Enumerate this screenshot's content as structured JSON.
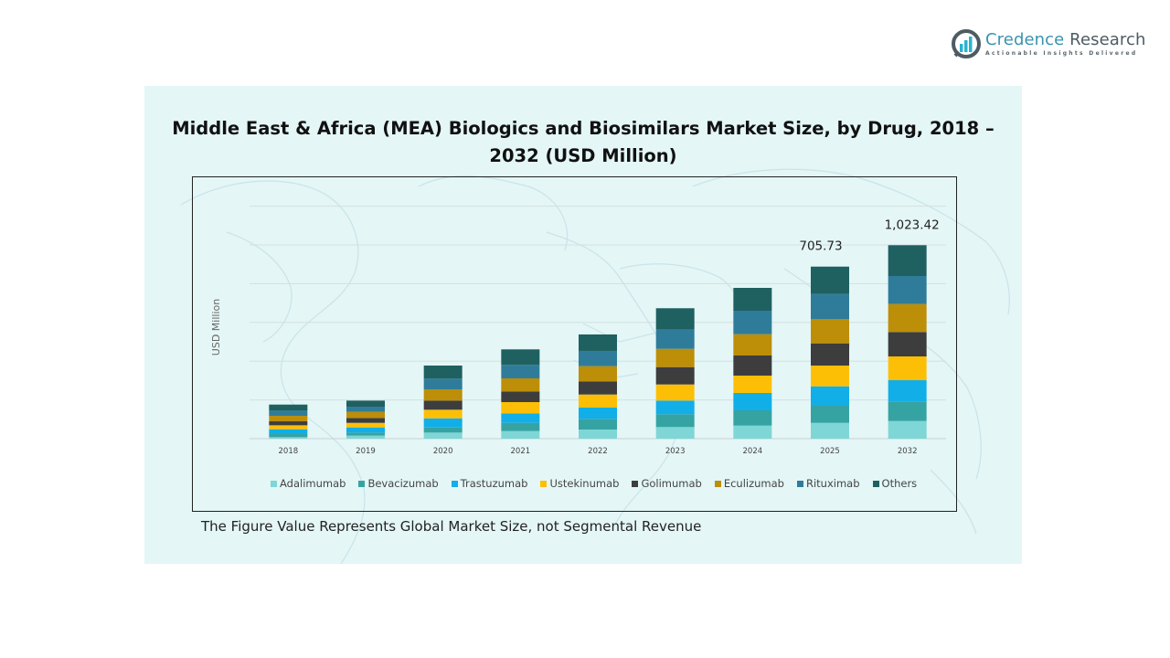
{
  "brand": {
    "name_part1": "Credence",
    "name_part2": " Research",
    "tagline": "Actionable Insights Delivered"
  },
  "footnote": "The Figure Value Represents Global Market Size, not Segmental Revenue",
  "chart_data": {
    "type": "bar",
    "stacked": true,
    "title": "Middle East & Africa (MEA) Biologics and Biosimilars Market Size, by Drug, 2018 – 2032 (USD Million)",
    "xlabel": "",
    "ylabel": "USD Million",
    "grid": true,
    "legend_position": "bottom",
    "categories": [
      "2018",
      "2019",
      "2020",
      "2021",
      "2022",
      "2023",
      "2024",
      "2025",
      "2032"
    ],
    "series": [
      {
        "name": "Adalimumab",
        "color": "#7fd6d6",
        "values": [
          6.2,
          12.5,
          25.0,
          31.1,
          37.5,
          47.6,
          53.6,
          64.8,
          93.3
        ]
      },
      {
        "name": "Bevacizumab",
        "color": "#36a3a3",
        "values": [
          12.5,
          12.5,
          21.0,
          33.7,
          43.9,
          52.5,
          62.6,
          70.1,
          103.4
        ]
      },
      {
        "name": "Trastuzumab",
        "color": "#12aee8",
        "values": [
          20.0,
          21.2,
          37.5,
          39.0,
          46.1,
          56.2,
          71.2,
          79.8,
          112.6
        ]
      },
      {
        "name": "Ustekinumab",
        "color": "#fdbf06",
        "values": [
          16.2,
          18.7,
          35.2,
          46.1,
          53.6,
          66.0,
          71.2,
          85.1,
          125.7
        ]
      },
      {
        "name": "Golimumab",
        "color": "#3d3d3d",
        "values": [
          16.2,
          20.0,
          37.5,
          43.9,
          54.0,
          71.2,
          82.5,
          91.1,
          129.1
        ]
      },
      {
        "name": "Eculizumab",
        "color": "#bd8e08",
        "values": [
          22.5,
          25.0,
          46.1,
          53.6,
          62.2,
          75.0,
          87.3,
          98.9,
          147.9
        ]
      },
      {
        "name": "Rituximab",
        "color": "#2f7c9a",
        "values": [
          21.2,
          21.2,
          43.9,
          55.1,
          62.6,
          78.7,
          96.3,
          103.4,
          148.4
        ]
      },
      {
        "name": "Others",
        "color": "#1f6060",
        "values": [
          25.0,
          25.0,
          53.6,
          63.7,
          67.5,
          87.7,
          93.7,
          112.4,
          162.9
        ]
      }
    ],
    "data_labels": [
      {
        "category": "2025",
        "text": "705.73"
      },
      {
        "category": "2032",
        "text": "1,023.42"
      }
    ],
    "gridline_count": 6
  }
}
